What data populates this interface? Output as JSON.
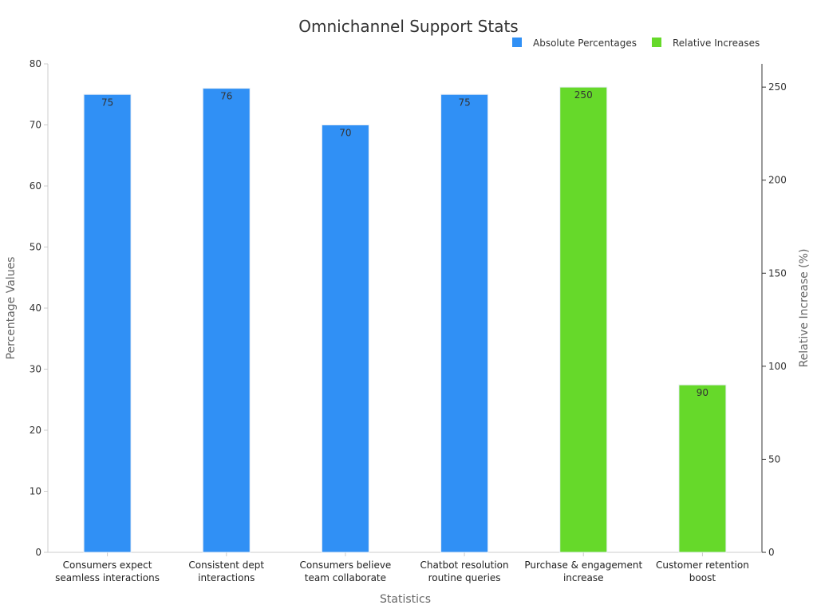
{
  "chart_data": {
    "type": "bar",
    "title": "Omnichannel Support Stats",
    "xlabel": "Statistics",
    "ylabel": "Percentage Values",
    "y2label": "Relative Increase (%)",
    "ylim": [
      0,
      80
    ],
    "y2lim": [
      0,
      262.5
    ],
    "yticks": [
      0,
      10,
      20,
      30,
      40,
      50,
      60,
      70,
      80
    ],
    "y2ticks": [
      0,
      50,
      100,
      150,
      200,
      250
    ],
    "legend_position": "top-right",
    "grid": false,
    "categories": [
      [
        "Consumers expect",
        "seamless interactions"
      ],
      [
        "Consistent dept",
        "interactions"
      ],
      [
        "Consumers believe",
        "team collaborate"
      ],
      [
        "Chatbot resolution",
        "routine queries"
      ],
      [
        "Purchase & engagement",
        "increase"
      ],
      [
        "Customer retention",
        "boost"
      ]
    ],
    "series": [
      {
        "name": "Absolute Percentages",
        "axis": "left",
        "color": "#3090f5",
        "values": [
          75,
          76,
          70,
          75,
          null,
          null
        ]
      },
      {
        "name": "Relative Increases",
        "axis": "right",
        "color": "#66d92a",
        "values": [
          null,
          null,
          null,
          null,
          250,
          90
        ]
      }
    ]
  }
}
